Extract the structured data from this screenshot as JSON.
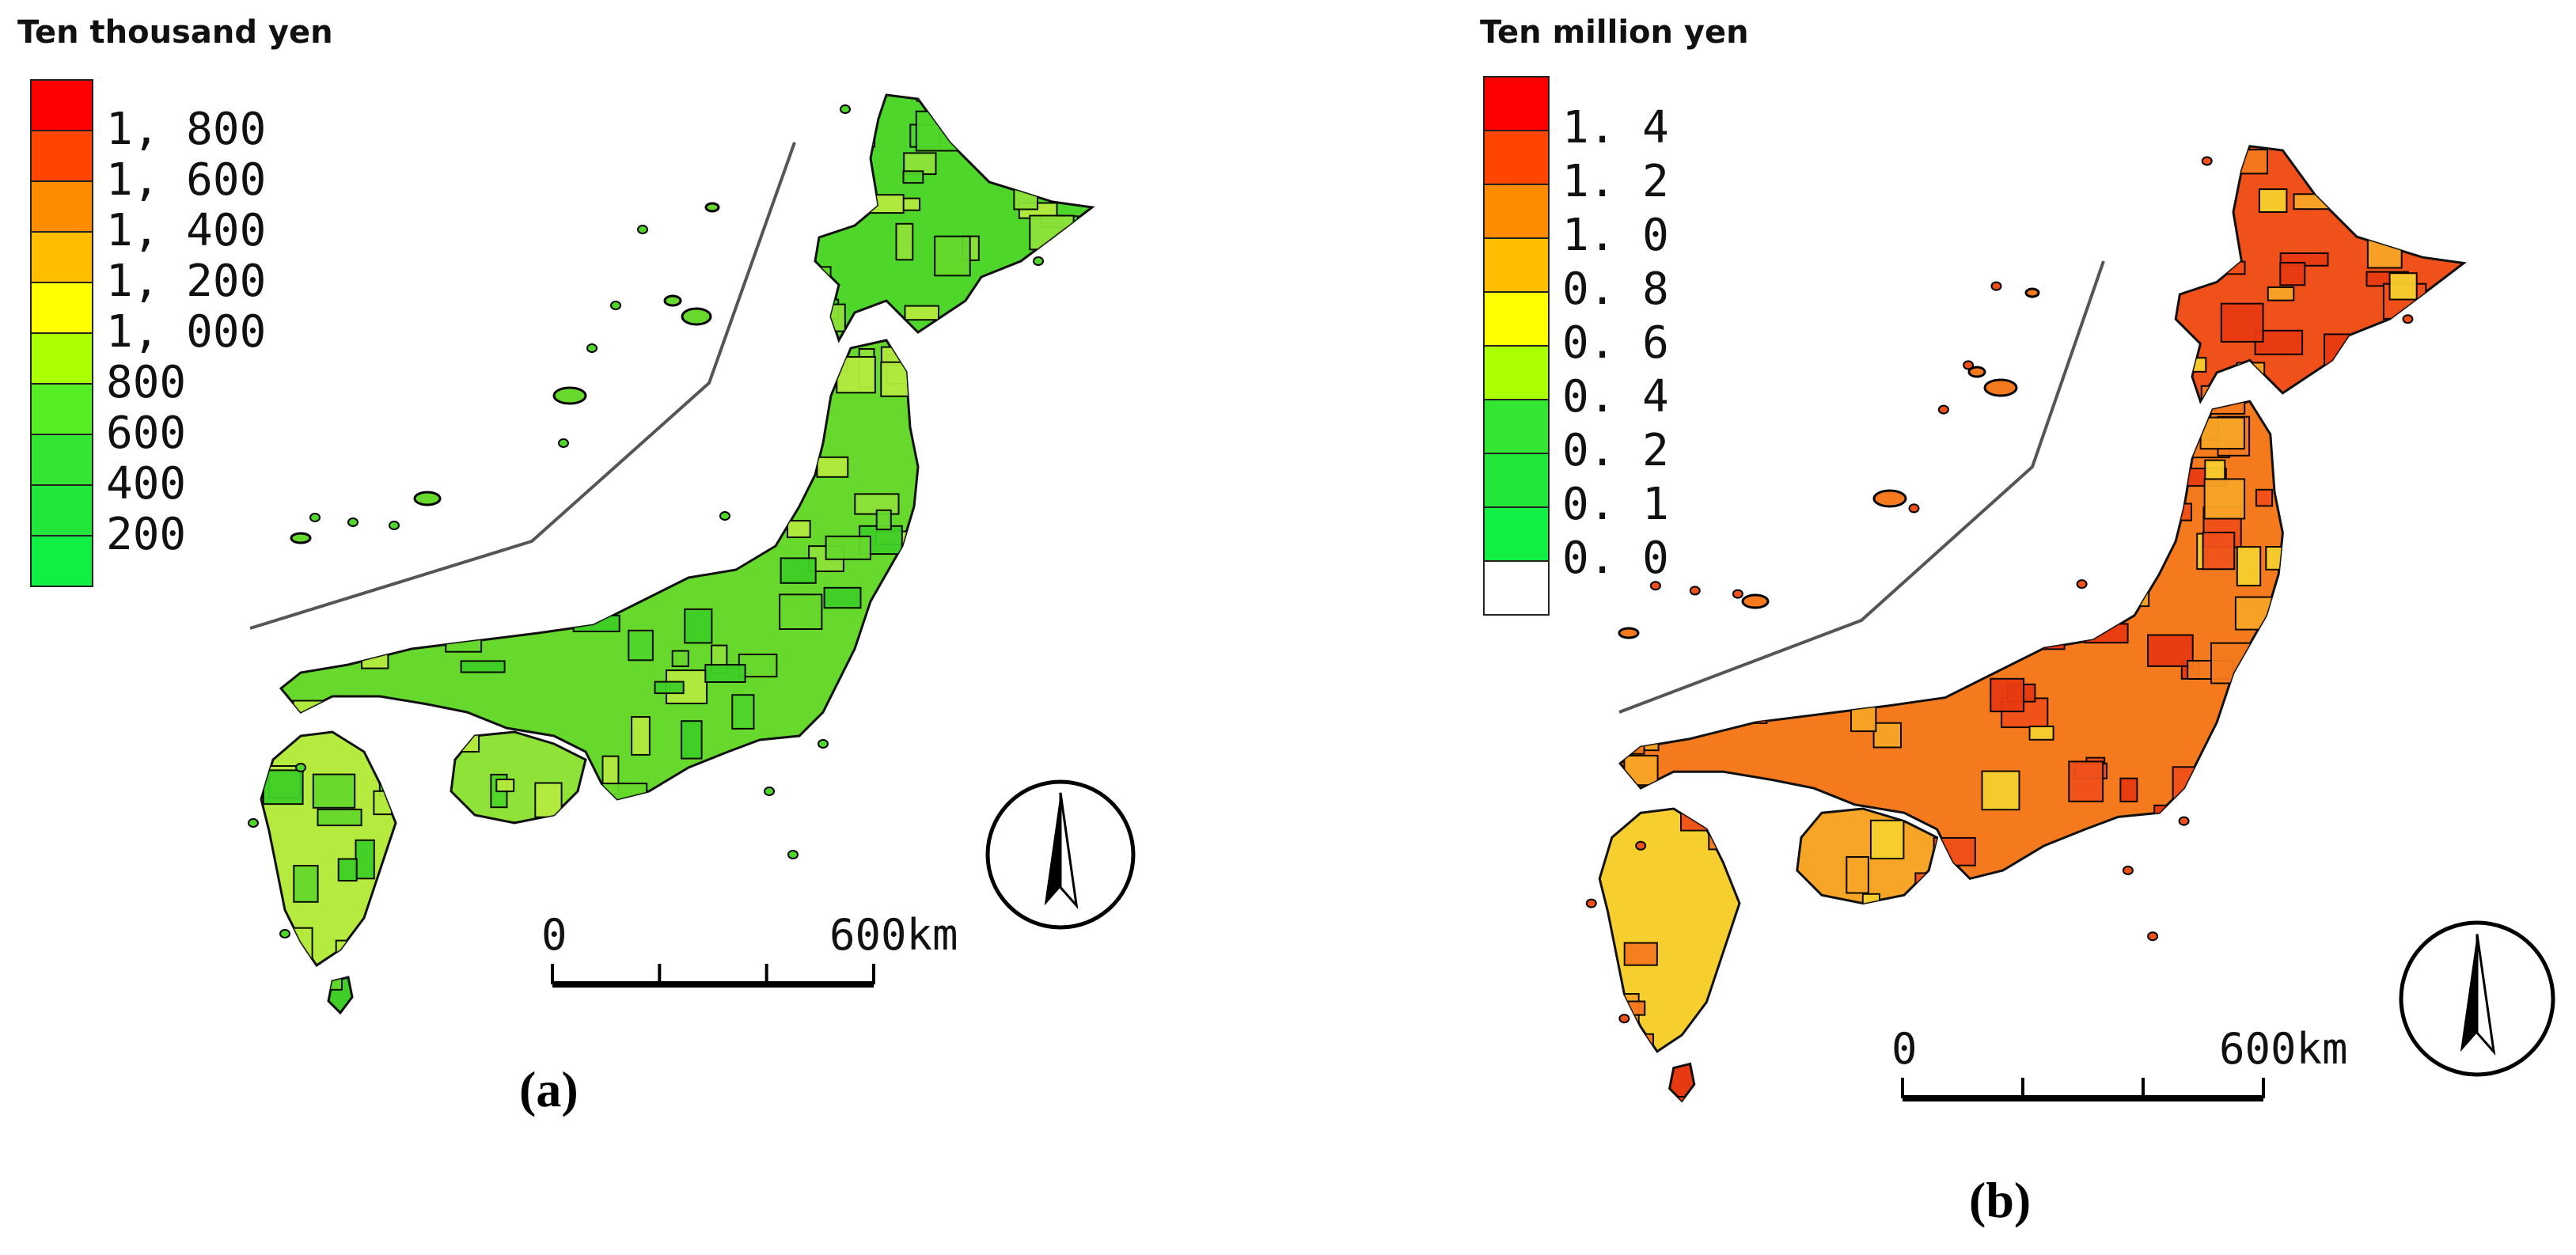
{
  "panels": [
    {
      "id": "a",
      "unit": "Ten thousand yen",
      "label": "(a)",
      "legend": [
        {
          "color": "#ff0000",
          "tick": "1, 800"
        },
        {
          "color": "#ff4500",
          "tick": "1, 600"
        },
        {
          "color": "#ff8c00",
          "tick": "1, 400"
        },
        {
          "color": "#ffbe00",
          "tick": "1, 200"
        },
        {
          "color": "#ffff00",
          "tick": "1, 000"
        },
        {
          "color": "#aaff00",
          "tick": "800"
        },
        {
          "color": "#55ee22",
          "tick": "600"
        },
        {
          "color": "#33e633",
          "tick": "400"
        },
        {
          "color": "#22e63a",
          "tick": "200"
        },
        {
          "color": "#11ee44",
          "tick": ""
        }
      ],
      "scale_bar": {
        "start": "0",
        "end": "600km"
      },
      "map_colors": [
        "#4fd62a",
        "#66d92c",
        "#8ee238",
        "#b5ea3f",
        "#3fcf26"
      ],
      "north_arrow": "north-arrow-icon"
    },
    {
      "id": "b",
      "unit": "Ten million yen",
      "label": "(b)",
      "legend": [
        {
          "color": "#ff0000",
          "tick": "1. 4"
        },
        {
          "color": "#ff4500",
          "tick": "1. 2"
        },
        {
          "color": "#ff8c00",
          "tick": "1. 0"
        },
        {
          "color": "#ffbe00",
          "tick": "0. 8"
        },
        {
          "color": "#ffff00",
          "tick": "0. 6"
        },
        {
          "color": "#aaff00",
          "tick": "0. 4"
        },
        {
          "color": "#33e633",
          "tick": "0. 2"
        },
        {
          "color": "#22e63a",
          "tick": "0. 1"
        },
        {
          "color": "#11ee44",
          "tick": "0. 0"
        },
        {
          "color": "#ffffff",
          "tick": ""
        }
      ],
      "scale_bar": {
        "start": "0",
        "end": "600km"
      },
      "map_colors": [
        "#f0501a",
        "#f57a1e",
        "#f7a526",
        "#f6cf2e",
        "#e83a12"
      ],
      "north_arrow": "north-arrow-icon"
    }
  ]
}
